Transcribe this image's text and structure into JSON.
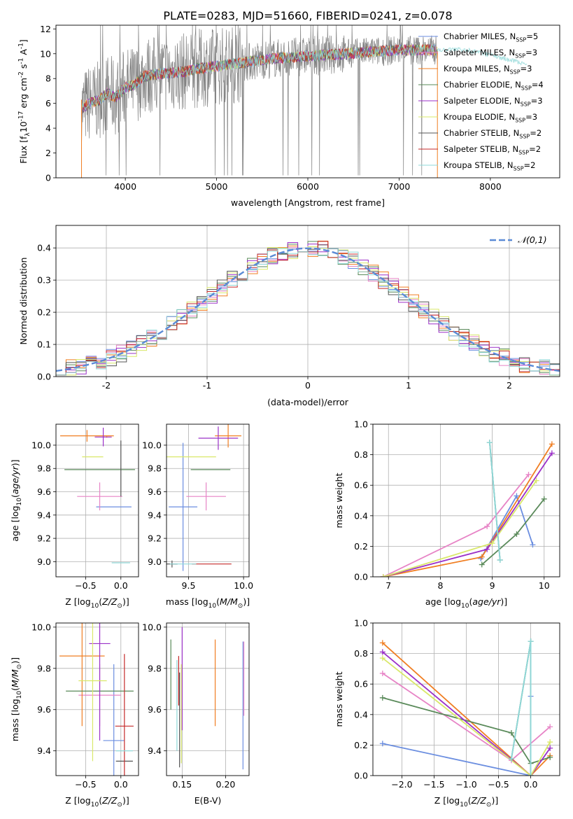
{
  "figure": {
    "title": "PLATE=0283, MJD=51660, FIBERID=0241, z=0.078"
  },
  "series_colors": [
    "#6b8ee0",
    "#e784c6",
    "#f07e22",
    "#5a8a5a",
    "#9b30c8",
    "#d9e86a",
    "#555555",
    "#c42a2a",
    "#8fd8d8"
  ],
  "chart_data": [
    {
      "id": "spectrum",
      "type": "line",
      "xlabel": "wavelength [Angstrom, rest frame]",
      "ylabel": "Flux [f$_\\lambda$10$^{-17}$ erg cm$^{-2}$ s$^{-1}$ A$^{-1}$]",
      "xlim": [
        3240,
        8760
      ],
      "ylim": [
        0,
        12.3
      ],
      "xticks": [
        4000,
        5000,
        6000,
        7000,
        8000
      ],
      "yticks": [
        0,
        2,
        4,
        6,
        8,
        10,
        12
      ],
      "grid": false,
      "legend_position": "top-right",
      "data_series": {
        "name": "data",
        "color": "#808080"
      },
      "model_series": [
        {
          "name": "Chabrier MILES, N$_{SSP}$=5"
        },
        {
          "name": "Salpeter MILES, N$_{SSP}$=3"
        },
        {
          "name": "Kroupa MILES, N$_{SSP}$=3"
        },
        {
          "name": "Chabrier ELODIE, N$_{SSP}$=4"
        },
        {
          "name": "Salpeter ELODIE, N$_{SSP}$=3"
        },
        {
          "name": "Kroupa ELODIE, N$_{SSP}$=3"
        },
        {
          "name": "Chabrier STELIB, N$_{SSP}$=2"
        },
        {
          "name": "Salpeter STELIB, N$_{SSP}$=2"
        },
        {
          "name": "Kroupa STELIB, N$_{SSP}$=2"
        }
      ],
      "continuum": {
        "x": [
          3520,
          3600,
          3700,
          3800,
          3900,
          4000,
          4100,
          4200,
          4400,
          4600,
          4800,
          5000,
          5200,
          5400,
          5600,
          5800,
          6000,
          6200,
          6400,
          6600,
          6800,
          7000,
          7200,
          7400,
          7600,
          7800,
          8000,
          8200,
          8400
        ],
        "y": [
          5.5,
          6.0,
          6.2,
          6.8,
          6.5,
          7.3,
          7.5,
          8.2,
          8.4,
          8.5,
          8.8,
          9.0,
          9.2,
          9.4,
          9.6,
          9.7,
          9.8,
          9.9,
          10.0,
          10.1,
          10.2,
          10.3,
          10.3,
          10.3,
          10.4,
          10.2,
          9.9,
          9.5,
          9.2
        ]
      }
    },
    {
      "id": "residuals",
      "type": "line",
      "xlabel": "(data-model)/error",
      "ylabel": "Normed distribution",
      "xlim": [
        -2.5,
        2.5
      ],
      "ylim": [
        0,
        0.47
      ],
      "xticks": [
        -2,
        -1,
        0,
        1,
        2
      ],
      "yticks": [
        0.0,
        0.1,
        0.2,
        0.3,
        0.4
      ],
      "grid": true,
      "legend_position": "top-right",
      "reference_curve": {
        "name": "$\\mathcal{N}(0,1)$",
        "mean": 0,
        "sigma": 1
      }
    },
    {
      "id": "age-vs-Z",
      "type": "scatter",
      "xlabel": "Z [log$_{10}$($Z/Z_\\odot$)]",
      "ylabel": "age  [log$_{10}$($age/yr$)]",
      "xlim": [
        -0.92,
        0.25
      ],
      "ylim": [
        8.87,
        10.18
      ],
      "xticks": [
        -0.5,
        0.0
      ],
      "yticks": [
        9.0,
        9.2,
        9.4,
        9.6,
        9.8,
        10.0
      ],
      "grid": true,
      "points": [
        {
          "x": -0.1,
          "y": 9.47,
          "xerr": 0.25,
          "yerr": 0.0
        },
        {
          "x": -0.3,
          "y": 9.56,
          "xerr": 0.32,
          "yerr": 0.12
        },
        {
          "x": -0.48,
          "y": 10.08,
          "xerr": 0.38,
          "yerr": 0.05
        },
        {
          "x": -0.3,
          "y": 9.79,
          "xerr": 0.5,
          "yerr": 0.0
        },
        {
          "x": -0.25,
          "y": 10.07,
          "xerr": 0.12,
          "yerr": 0.08
        },
        {
          "x": -0.4,
          "y": 9.9,
          "xerr": 0.15,
          "yerr": 0.0
        },
        {
          "x": 0.0,
          "y": 9.8,
          "xerr": 0.0,
          "yerr": 0.24
        },
        {
          "x": -0.2,
          "y": 10.07,
          "xerr": 0.0,
          "yerr": 0.0
        },
        {
          "x": 0.0,
          "y": 8.99,
          "xerr": 0.13,
          "yerr": 0.0
        }
      ]
    },
    {
      "id": "age-vs-mass",
      "type": "scatter",
      "xlabel": "mass [log$_{10}$($M/M_\\odot$)]",
      "ylabel": "",
      "xlim": [
        9.3,
        10.05
      ],
      "ylim": [
        8.87,
        10.18
      ],
      "xticks": [
        9.5,
        10.0
      ],
      "yticks": [
        9.0,
        9.2,
        9.4,
        9.6,
        9.8,
        10.0
      ],
      "grid": true,
      "points": [
        {
          "x": 9.45,
          "y": 9.47,
          "xerr": 0.13,
          "yerr": 0.55
        },
        {
          "x": 9.66,
          "y": 9.56,
          "xerr": 0.18,
          "yerr": 0.12
        },
        {
          "x": 9.86,
          "y": 10.08,
          "xerr": 0.12,
          "yerr": 0.1
        },
        {
          "x": 9.7,
          "y": 9.79,
          "xerr": 0.18,
          "yerr": 0.0
        },
        {
          "x": 9.77,
          "y": 10.06,
          "xerr": 0.18,
          "yerr": 0.1
        },
        {
          "x": 9.5,
          "y": 9.9,
          "xerr": 0.25,
          "yerr": 0.0
        },
        {
          "x": 9.35,
          "y": 8.98,
          "xerr": 0.05,
          "yerr": 0.03
        },
        {
          "x": 9.71,
          "y": 8.98,
          "xerr": 0.18,
          "yerr": 0.0
        },
        {
          "x": 9.45,
          "y": 8.98,
          "xerr": 0.12,
          "yerr": 0.0
        }
      ]
    },
    {
      "id": "weight-vs-age",
      "type": "line",
      "xlabel": "age  [log$_{10}$($age/yr$)]",
      "ylabel": "mass weight",
      "xlim": [
        6.7,
        10.3
      ],
      "ylim": [
        0,
        1.0
      ],
      "xticks": [
        7,
        8,
        9,
        10
      ],
      "yticks": [
        0.0,
        0.2,
        0.4,
        0.6,
        0.8,
        1.0
      ],
      "grid": true,
      "series": [
        {
          "x": [
            8.78,
            9.47,
            9.78
          ],
          "y": [
            0.12,
            0.53,
            0.21
          ]
        },
        {
          "x": [
            6.9,
            8.9,
            9.7
          ],
          "y": [
            0.0,
            0.33,
            0.67
          ]
        },
        {
          "x": [
            6.9,
            8.8,
            10.15
          ],
          "y": [
            0.0,
            0.13,
            0.87
          ]
        },
        {
          "x": [
            8.8,
            9.47,
            10.0
          ],
          "y": [
            0.08,
            0.28,
            0.51
          ]
        },
        {
          "x": [
            6.9,
            8.9,
            10.15
          ],
          "y": [
            0.0,
            0.18,
            0.81
          ]
        },
        {
          "x": [
            6.9,
            9.0,
            9.85
          ],
          "y": [
            0.0,
            0.22,
            0.63
          ]
        },
        {
          "x": [
            8.95,
            9.15
          ],
          "y": [
            0.88,
            0.11
          ]
        },
        {
          "x": [
            8.95,
            9.15
          ],
          "y": [
            0.88,
            0.11
          ]
        },
        {
          "x": [
            8.95,
            9.15
          ],
          "y": [
            0.88,
            0.11
          ]
        }
      ]
    },
    {
      "id": "mass-vs-Z",
      "type": "scatter",
      "xlabel": "Z [log$_{10}$($Z/Z_\\odot$)]",
      "ylabel": "mass [log$_{10}$($M/M_\\odot$)]",
      "xlim": [
        -0.92,
        0.25
      ],
      "ylim": [
        9.28,
        10.02
      ],
      "xticks": [
        -0.5,
        0.0
      ],
      "yticks": [
        9.4,
        9.6,
        9.8,
        10.0
      ],
      "grid": true,
      "points": [
        {
          "x": -0.1,
          "y": 9.45,
          "xerr": 0.15,
          "yerr": 0.37
        },
        {
          "x": -0.3,
          "y": 9.67,
          "xerr": 0.3,
          "yerr": 0.15
        },
        {
          "x": -0.55,
          "y": 9.86,
          "xerr": 0.32,
          "yerr": 0.34
        },
        {
          "x": -0.3,
          "y": 9.69,
          "xerr": 0.48,
          "yerr": 0.0
        },
        {
          "x": -0.3,
          "y": 9.92,
          "xerr": 0.15,
          "yerr": 0.47
        },
        {
          "x": -0.4,
          "y": 9.74,
          "xerr": 0.2,
          "yerr": 0.39
        },
        {
          "x": 0.05,
          "y": 9.35,
          "xerr": 0.12,
          "yerr": 0.0
        },
        {
          "x": 0.05,
          "y": 9.52,
          "xerr": 0.13,
          "yerr": 0.35
        },
        {
          "x": 0.05,
          "y": 9.4,
          "xerr": 0.12,
          "yerr": 0.0
        }
      ]
    },
    {
      "id": "mass-vs-EBV",
      "type": "scatter",
      "xlabel": "E(B-V)",
      "ylabel": "",
      "xlim": [
        0.132,
        0.227
      ],
      "ylim": [
        9.28,
        10.02
      ],
      "xticks": [
        0.15,
        0.2
      ],
      "yticks": [
        9.4,
        9.6,
        9.8,
        10.0
      ],
      "grid": true,
      "points": [
        {
          "x": 0.22,
          "y": 9.62,
          "xerr": 0.0,
          "yerr": 0.31
        },
        {
          "x": 0.221,
          "y": 9.75,
          "xerr": 0.0,
          "yerr": 0.18
        },
        {
          "x": 0.188,
          "y": 9.73,
          "xerr": 0.0,
          "yerr": 0.21
        },
        {
          "x": 0.137,
          "y": 9.77,
          "xerr": 0.0,
          "yerr": 0.17
        },
        {
          "x": 0.15,
          "y": 9.75,
          "xerr": 0.0,
          "yerr": 0.25
        },
        {
          "x": 0.149,
          "y": 9.58,
          "xerr": 0.0,
          "yerr": 0.24
        },
        {
          "x": 0.147,
          "y": 9.55,
          "xerr": 0.0,
          "yerr": 0.23
        },
        {
          "x": 0.146,
          "y": 9.74,
          "xerr": 0.0,
          "yerr": 0.12
        },
        {
          "x": 0.144,
          "y": 9.62,
          "xerr": 0.0,
          "yerr": 0.22
        }
      ]
    },
    {
      "id": "weight-vs-Z",
      "type": "line",
      "xlabel": "Z [log$_{10}$($Z/Z_\\odot$)]",
      "ylabel": "mass weight",
      "xlim": [
        -2.45,
        0.45
      ],
      "ylim": [
        0,
        1.0
      ],
      "xticks": [
        -2.0,
        -1.5,
        -1.0,
        -0.5,
        0.0
      ],
      "yticks": [
        0.0,
        0.2,
        0.4,
        0.6,
        0.8,
        1.0
      ],
      "grid": true,
      "series": [
        {
          "x": [
            -2.3,
            0.0,
            0.0
          ],
          "y": [
            0.21,
            0.0,
            0.52
          ]
        },
        {
          "x": [
            -2.3,
            -0.3,
            0.3
          ],
          "y": [
            0.67,
            0.1,
            0.32
          ]
        },
        {
          "x": [
            -2.3,
            0.0,
            0.3
          ],
          "y": [
            0.87,
            0.0,
            0.13
          ]
        },
        {
          "x": [
            -2.3,
            -0.3,
            0.0,
            0.3
          ],
          "y": [
            0.51,
            0.28,
            0.08,
            0.12
          ]
        },
        {
          "x": [
            -2.3,
            0.0,
            0.3
          ],
          "y": [
            0.81,
            0.0,
            0.18
          ]
        },
        {
          "x": [
            -2.3,
            0.0,
            0.3
          ],
          "y": [
            0.77,
            0.0,
            0.22
          ]
        },
        {
          "x": [
            -0.3,
            0.0,
            0.0
          ],
          "y": [
            0.11,
            0.88,
            0.0
          ]
        },
        {
          "x": [
            -0.3,
            0.0,
            0.0
          ],
          "y": [
            0.11,
            0.88,
            0.0
          ]
        },
        {
          "x": [
            -0.3,
            0.0,
            0.0
          ],
          "y": [
            0.11,
            0.88,
            0.0
          ]
        }
      ]
    }
  ]
}
